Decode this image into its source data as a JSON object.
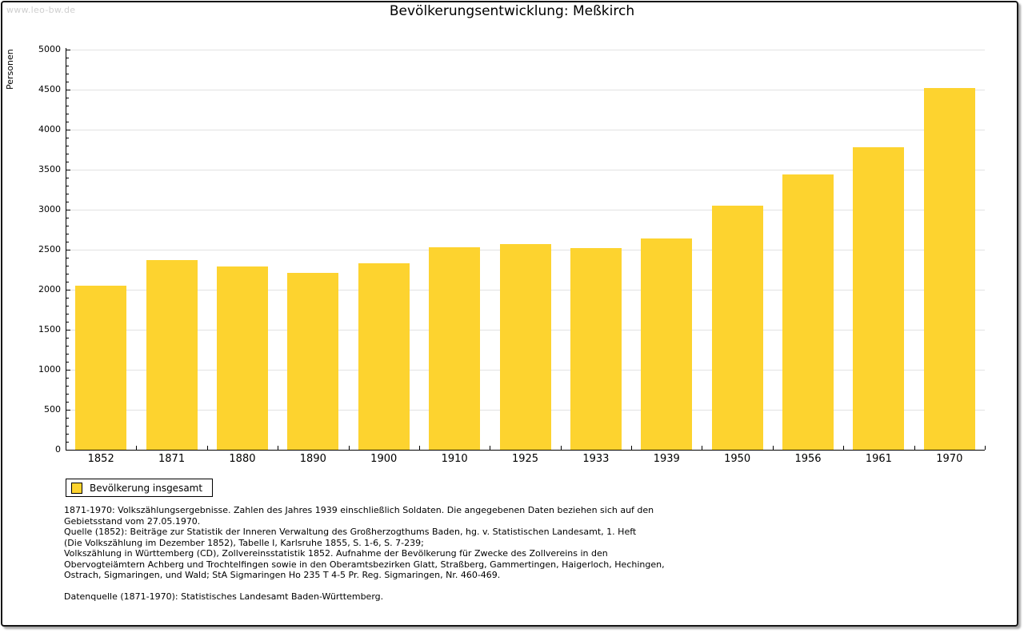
{
  "watermark": "www.leo-bw.de",
  "chart_data": {
    "type": "bar",
    "title": "Bevölkerungsentwicklung: Meßkirch",
    "ylabel": "Personen",
    "xlabel": "",
    "categories": [
      "1852",
      "1871",
      "1880",
      "1890",
      "1900",
      "1910",
      "1925",
      "1933",
      "1939",
      "1950",
      "1956",
      "1961",
      "1970"
    ],
    "values": [
      2050,
      2370,
      2290,
      2215,
      2330,
      2535,
      2575,
      2525,
      2645,
      3050,
      3445,
      3785,
      4525
    ],
    "ylim": [
      0,
      5000
    ],
    "ytick_step": 500,
    "yminor_step": 100,
    "grid": true,
    "legend_position": "bottom-left",
    "bar_color": "#FDD32F",
    "gridline_color": "#e2e2e2",
    "axis_color": "#000000"
  },
  "legend": {
    "label": "Bevölkerung insgesamt"
  },
  "footnotes": {
    "lines": [
      "1871-1970: Volkszählungsergebnisse. Zahlen des Jahres 1939 einschließlich Soldaten. Die angegebenen Daten beziehen sich auf den",
      "Gebietsstand vom 27.05.1970.",
      "Quelle (1852): Beiträge zur Statistik der Inneren Verwaltung des Großherzogthums Baden, hg. v. Statistischen Landesamt, 1. Heft",
      "(Die Volkszählung im Dezember 1852), Tabelle I, Karlsruhe 1855, S. 1-6, S. 7-239;",
      "Volkszählung in Württemberg (CD), Zollvereinsstatistik 1852. Aufnahme der Bevölkerung für Zwecke des Zollvereins in den",
      "Obervogteiämtern Achberg und Trochtelfingen sowie in den Oberamtsbezirken Glatt, Straßberg, Gammertingen, Haigerloch, Hechingen,",
      "Ostrach, Sigmaringen, und Wald; StA Sigmaringen Ho 235 T 4-5 Pr. Reg. Sigmaringen, Nr. 460-469.",
      "",
      "Datenquelle (1871-1970): Statistisches Landesamt Baden-Württemberg."
    ]
  }
}
